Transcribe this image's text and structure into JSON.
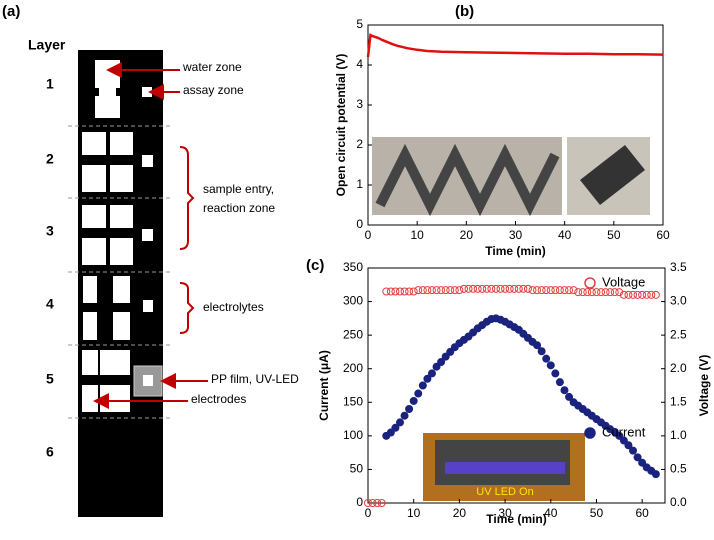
{
  "panel_labels": [
    "(a)",
    "(b)",
    "(c)"
  ],
  "diagram": {
    "heading": "Layer",
    "layers": [
      "1",
      "2",
      "3",
      "4",
      "5",
      "6"
    ],
    "annotations": [
      "water zone",
      "assay zone",
      "sample entry,",
      "reaction zone",
      "electrolytes",
      "PP film, UV-LED",
      "electrodes"
    ]
  },
  "chart_data": [
    {
      "type": "line",
      "xlabel": "Time (min)",
      "ylabel": "Open circuit potential (V)",
      "color": "#e01010",
      "x": [
        0,
        0.5,
        1,
        2,
        3,
        4,
        5,
        6,
        8,
        10,
        12,
        15,
        20,
        25,
        30,
        35,
        40,
        45,
        50,
        55,
        60
      ],
      "values": [
        4.2,
        4.75,
        4.72,
        4.68,
        4.62,
        4.57,
        4.52,
        4.48,
        4.42,
        4.38,
        4.35,
        4.33,
        4.32,
        4.31,
        4.3,
        4.29,
        4.28,
        4.28,
        4.27,
        4.27,
        4.26
      ],
      "xlim": [
        0,
        60
      ],
      "xticks": [
        0,
        10,
        20,
        30,
        40,
        50,
        60
      ],
      "ylim": [
        0,
        5
      ],
      "yticks": [
        0,
        1,
        2,
        3,
        4,
        5
      ]
    },
    {
      "type": "scatter",
      "xlabel": "Time (min)",
      "ylabel": "Current (μA)",
      "y2label": "Voltage (V)",
      "inset_label": "UV LED On",
      "xlim": [
        0,
        65
      ],
      "xticks": [
        0,
        10,
        20,
        30,
        40,
        50,
        60
      ],
      "ylim": [
        0,
        350
      ],
      "yticks": [
        0,
        50,
        100,
        150,
        200,
        250,
        300,
        350
      ],
      "y2lim": [
        0,
        3.5
      ],
      "y2ticks": [
        {
          "value": 0,
          "label": "0.0"
        },
        {
          "value": 0.5,
          "label": "0.5"
        },
        {
          "value": 1,
          "label": "1.0"
        },
        {
          "value": 1.5,
          "label": "1.5"
        },
        {
          "value": 2,
          "label": "2.0"
        },
        {
          "value": 2.5,
          "label": "2.5"
        },
        {
          "value": 3,
          "label": "3.0"
        },
        {
          "value": 3.5,
          "label": "3.5"
        }
      ],
      "series": [
        {
          "name": "Voltage",
          "color": "#e04040",
          "filled": false,
          "axis": "y2",
          "x": [
            0,
            1,
            2,
            3,
            4,
            5,
            6,
            7,
            8,
            9,
            10,
            11,
            12,
            13,
            14,
            15,
            16,
            17,
            18,
            19,
            20,
            21,
            22,
            23,
            24,
            25,
            26,
            27,
            28,
            29,
            30,
            31,
            32,
            33,
            34,
            35,
            36,
            37,
            38,
            39,
            40,
            41,
            42,
            43,
            44,
            45,
            46,
            47,
            48,
            49,
            50,
            51,
            52,
            53,
            54,
            55,
            56,
            57,
            58,
            59,
            60,
            61,
            62,
            63
          ],
          "values": [
            0,
            0,
            0,
            0,
            3.15,
            3.15,
            3.15,
            3.15,
            3.15,
            3.15,
            3.15,
            3.17,
            3.17,
            3.17,
            3.17,
            3.17,
            3.17,
            3.17,
            3.17,
            3.17,
            3.17,
            3.19,
            3.19,
            3.19,
            3.19,
            3.19,
            3.19,
            3.19,
            3.19,
            3.19,
            3.19,
            3.19,
            3.19,
            3.19,
            3.19,
            3.19,
            3.17,
            3.17,
            3.17,
            3.17,
            3.17,
            3.17,
            3.17,
            3.17,
            3.17,
            3.17,
            3.14,
            3.14,
            3.14,
            3.14,
            3.14,
            3.14,
            3.14,
            3.14,
            3.14,
            3.14,
            3.1,
            3.1,
            3.1,
            3.1,
            3.1,
            3.1,
            3.1,
            3.1
          ]
        },
        {
          "name": "Current",
          "color": "#1a237e",
          "filled": true,
          "x": [
            4,
            5,
            6,
            7,
            8,
            9,
            10,
            11,
            12,
            13,
            14,
            15,
            16,
            17,
            18,
            19,
            20,
            21,
            22,
            23,
            24,
            25,
            26,
            27,
            28,
            29,
            30,
            31,
            32,
            33,
            34,
            35,
            36,
            37,
            38,
            39,
            40,
            41,
            42,
            43,
            44,
            45,
            46,
            47,
            48,
            49,
            50,
            51,
            52,
            53,
            54,
            55,
            56,
            57,
            58,
            59,
            60,
            61,
            62,
            63
          ],
          "values": [
            100,
            105,
            112,
            120,
            130,
            140,
            152,
            163,
            175,
            185,
            193,
            203,
            210,
            218,
            225,
            232,
            238,
            243,
            248,
            254,
            260,
            265,
            270,
            274,
            275,
            273,
            270,
            266,
            262,
            258,
            252,
            246,
            240,
            235,
            226,
            215,
            205,
            193,
            180,
            168,
            158,
            150,
            145,
            140,
            135,
            130,
            125,
            120,
            115,
            110,
            106,
            100,
            93,
            86,
            78,
            68,
            60,
            53,
            48,
            43
          ]
        }
      ]
    }
  ]
}
